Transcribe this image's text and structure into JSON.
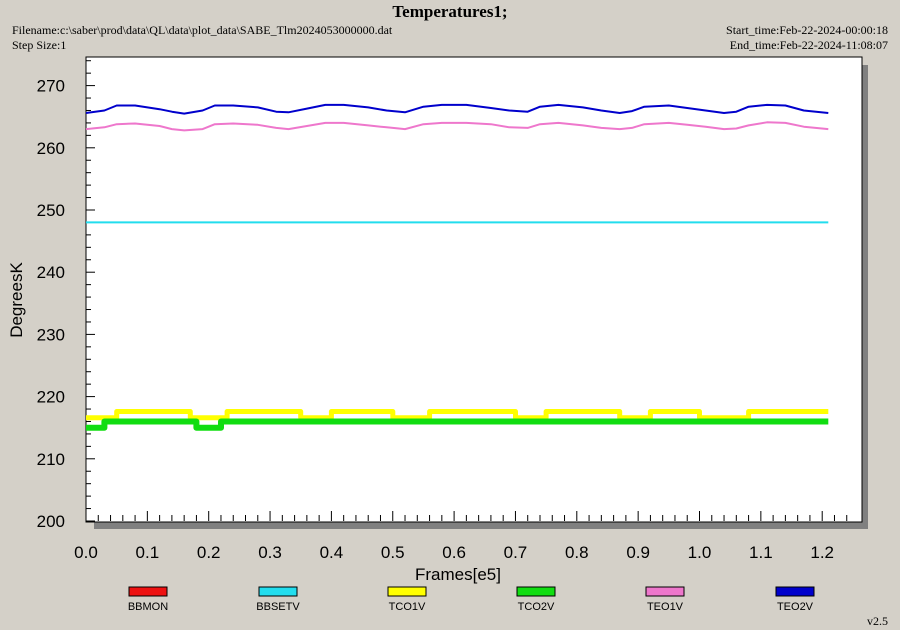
{
  "header": {
    "title": "Temperatures1;",
    "filename": "Filename:c:\\saber\\prod\\data\\QL\\data\\plot_data\\SABE_Tlm2024053000000.dat",
    "step_size": "Step Size:1",
    "start_time": "Start_time:Feb-22-2024-00:00:18",
    "end_time": "End_time:Feb-22-2024-11:08:07"
  },
  "version": "v2.5",
  "colors": {
    "BBMON": "#ee1111",
    "BBSETV": "#22ddee",
    "TCO1V": "#ffff00",
    "TCO2V": "#11dd11",
    "TEO1V": "#ee77cc",
    "TEO2V": "#0000cc"
  },
  "chart_data": {
    "type": "line",
    "title": "Temperatures1;",
    "xlabel": "Frames[e5]",
    "ylabel": "DegreesK",
    "xlim": [
      0.0,
      1.26
    ],
    "ylim": [
      200,
      275
    ],
    "x_ticks": [
      "0.0",
      "0.1",
      "0.2",
      "0.3",
      "0.4",
      "0.5",
      "0.6",
      "0.7",
      "0.8",
      "0.9",
      "1.0",
      "1.1",
      "1.2"
    ],
    "y_ticks": [
      "200",
      "210",
      "220",
      "230",
      "240",
      "250",
      "260",
      "270"
    ],
    "grid": false,
    "legend_position": "bottom",
    "series": [
      {
        "name": "BBMON",
        "x": [],
        "y": []
      },
      {
        "name": "BBSETV",
        "x": [
          0.0,
          0.2,
          0.4,
          0.6,
          0.8,
          1.0,
          1.21
        ],
        "y": [
          248.0,
          248.0,
          248.0,
          248.0,
          248.0,
          248.0,
          248.0
        ]
      },
      {
        "name": "TCO1V",
        "x": [
          0.0,
          0.02,
          0.03,
          0.05,
          0.15,
          0.17,
          0.18,
          0.2,
          0.22,
          0.23,
          0.33,
          0.35,
          0.38,
          0.4,
          0.41,
          0.47,
          0.5,
          0.52,
          0.55,
          0.56,
          0.6,
          0.62,
          0.67,
          0.7,
          0.74,
          0.75,
          0.85,
          0.87,
          0.9,
          0.92,
          0.94,
          0.98,
          1.0,
          1.04,
          1.06,
          1.08,
          1.1,
          1.12,
          1.21
        ],
        "y": [
          216.6,
          216.6,
          216.6,
          217.6,
          217.6,
          216.6,
          216.6,
          216.6,
          216.6,
          217.6,
          217.6,
          216.6,
          216.6,
          217.6,
          217.6,
          217.6,
          216.6,
          216.6,
          216.6,
          217.6,
          217.6,
          217.6,
          217.6,
          216.6,
          216.6,
          217.6,
          217.6,
          216.6,
          216.6,
          217.6,
          217.6,
          217.6,
          216.6,
          216.6,
          216.6,
          217.6,
          217.6,
          217.6,
          217.6
        ]
      },
      {
        "name": "TCO2V",
        "x": [
          0.0,
          0.02,
          0.03,
          0.05,
          0.1,
          0.15,
          0.18,
          0.2,
          0.22,
          0.25,
          0.3,
          0.35,
          0.4,
          0.45,
          0.5,
          0.55,
          0.6,
          0.65,
          0.7,
          0.75,
          0.8,
          0.85,
          0.9,
          0.95,
          1.0,
          1.05,
          1.1,
          1.15,
          1.21
        ],
        "y": [
          215.0,
          215.0,
          216.0,
          216.0,
          216.0,
          216.0,
          215.0,
          215.0,
          216.0,
          216.0,
          216.0,
          216.0,
          216.0,
          216.0,
          216.0,
          216.0,
          216.0,
          216.0,
          216.0,
          216.0,
          216.0,
          216.0,
          216.0,
          216.0,
          216.0,
          216.0,
          216.0,
          216.0,
          216.0
        ]
      },
      {
        "name": "TEO1V",
        "x": [
          0.0,
          0.03,
          0.05,
          0.08,
          0.12,
          0.14,
          0.16,
          0.19,
          0.21,
          0.24,
          0.28,
          0.31,
          0.33,
          0.36,
          0.39,
          0.42,
          0.46,
          0.49,
          0.52,
          0.55,
          0.58,
          0.62,
          0.66,
          0.69,
          0.72,
          0.74,
          0.77,
          0.81,
          0.84,
          0.87,
          0.89,
          0.91,
          0.95,
          0.98,
          1.01,
          1.04,
          1.06,
          1.08,
          1.11,
          1.14,
          1.17,
          1.21
        ],
        "y": [
          263.0,
          263.3,
          263.8,
          263.9,
          263.5,
          263.0,
          262.8,
          263.0,
          263.8,
          263.9,
          263.7,
          263.2,
          263.0,
          263.5,
          264.0,
          264.0,
          263.6,
          263.3,
          263.0,
          263.8,
          264.0,
          264.0,
          263.8,
          263.3,
          263.2,
          263.8,
          264.0,
          263.6,
          263.2,
          263.0,
          263.2,
          263.8,
          264.0,
          263.7,
          263.4,
          263.0,
          263.1,
          263.6,
          264.1,
          264.0,
          263.4,
          263.0
        ]
      },
      {
        "name": "TEO2V",
        "x": [
          0.0,
          0.03,
          0.05,
          0.08,
          0.12,
          0.14,
          0.16,
          0.19,
          0.21,
          0.24,
          0.28,
          0.31,
          0.33,
          0.36,
          0.39,
          0.42,
          0.46,
          0.49,
          0.52,
          0.55,
          0.58,
          0.62,
          0.66,
          0.69,
          0.72,
          0.74,
          0.77,
          0.81,
          0.84,
          0.87,
          0.89,
          0.91,
          0.95,
          0.98,
          1.01,
          1.04,
          1.06,
          1.08,
          1.11,
          1.14,
          1.17,
          1.21
        ],
        "y": [
          265.6,
          266.0,
          266.8,
          266.8,
          266.2,
          265.8,
          265.5,
          266.0,
          266.8,
          266.8,
          266.5,
          265.8,
          265.7,
          266.3,
          266.9,
          266.9,
          266.5,
          266.0,
          265.7,
          266.6,
          266.9,
          266.9,
          266.4,
          266.0,
          265.8,
          266.6,
          266.9,
          266.5,
          266.0,
          265.6,
          265.9,
          266.6,
          266.8,
          266.4,
          266.0,
          265.6,
          265.8,
          266.6,
          266.9,
          266.8,
          266.0,
          265.6
        ]
      }
    ]
  }
}
